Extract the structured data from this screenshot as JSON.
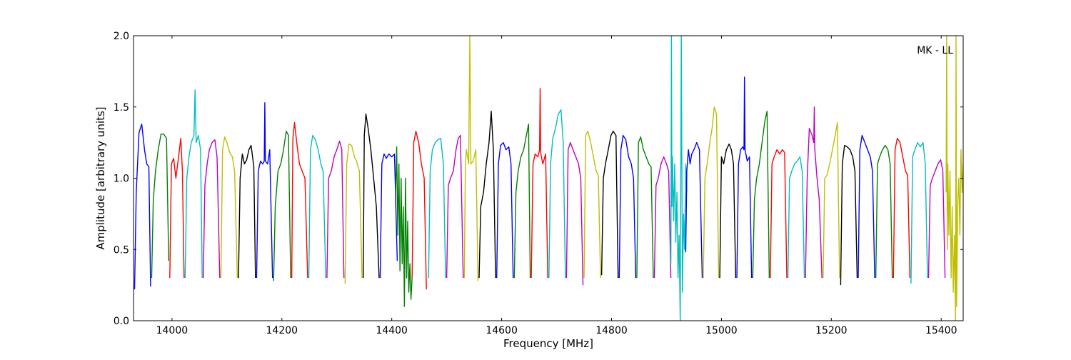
{
  "chart_data": {
    "type": "line",
    "title": "",
    "annotation": "MK - LL",
    "xlabel": "Frequency [MHz]",
    "ylabel": "Amplitude [arbitrary units]",
    "xlim": [
      13930,
      15440
    ],
    "ylim": [
      0.0,
      2.0
    ],
    "xticks": [
      14000,
      14200,
      14400,
      14600,
      14800,
      15000,
      15200,
      15400
    ],
    "yticks": [
      0.0,
      0.5,
      1.0,
      1.5,
      2.0
    ],
    "xtick_labels": [
      "14000",
      "14200",
      "14400",
      "14600",
      "14800",
      "15000",
      "15200",
      "15400"
    ],
    "ytick_labels": [
      "0.0",
      "0.5",
      "1.0",
      "1.5",
      "2.0"
    ],
    "grid": false,
    "legend": "none",
    "color_cycle": [
      "#0000ff",
      "#008000",
      "#ff0000",
      "#00bfbf",
      "#bf00bf",
      "#bfbf00",
      "#000000"
    ],
    "spike_shadow_color": "#bbbbbb",
    "series": [
      {
        "color": "#0000ff",
        "x": [
          13932,
          13935,
          13940,
          13945,
          13950,
          13954,
          13958,
          13961
        ],
        "y": [
          0.22,
          0.9,
          1.32,
          1.38,
          1.2,
          1.1,
          1.08,
          0.24
        ]
      },
      {
        "color": "#008000",
        "x": [
          13963,
          13966,
          13970,
          13975,
          13980,
          13985,
          13990,
          13994
        ],
        "y": [
          0.3,
          0.85,
          1.05,
          1.2,
          1.31,
          1.31,
          1.28,
          0.42
        ]
      },
      {
        "color": "#ff0000",
        "x": [
          13996,
          13999,
          14003,
          14007,
          14012,
          14016,
          14019,
          14022
        ],
        "y": [
          0.3,
          1.1,
          1.14,
          1.0,
          1.15,
          1.28,
          1.05,
          0.3
        ]
      },
      {
        "color": "#00bfbf",
        "x": [
          14024,
          14027,
          14031,
          14035,
          14040,
          14042,
          14044,
          14048,
          14052,
          14055
        ],
        "y": [
          0.3,
          1.0,
          1.15,
          1.25,
          1.3,
          1.62,
          1.25,
          1.3,
          1.2,
          0.3
        ]
      },
      {
        "color": "#bf00bf",
        "x": [
          14057,
          14060,
          14064,
          14068,
          14073,
          14078,
          14082,
          14087
        ],
        "y": [
          0.3,
          0.95,
          1.1,
          1.2,
          1.25,
          1.27,
          1.15,
          0.3
        ]
      },
      {
        "color": "#bfbf00",
        "x": [
          14089,
          14092,
          14096,
          14100,
          14105,
          14110,
          14114,
          14119
        ],
        "y": [
          0.3,
          1.2,
          1.29,
          1.25,
          1.18,
          1.15,
          1.05,
          0.3
        ]
      },
      {
        "color": "#000000",
        "x": [
          14121,
          14124,
          14128,
          14132,
          14136,
          14140,
          14144,
          14149,
          14152
        ],
        "y": [
          0.3,
          1.0,
          1.17,
          1.1,
          1.13,
          1.2,
          1.23,
          1.08,
          0.3
        ]
      },
      {
        "color": "#0000ff",
        "x": [
          14154,
          14157,
          14161,
          14165,
          14168,
          14169,
          14170,
          14174,
          14178,
          14183
        ],
        "y": [
          0.3,
          1.05,
          1.12,
          1.1,
          1.12,
          1.53,
          1.12,
          1.1,
          1.2,
          0.3
        ]
      },
      {
        "color": "#008000",
        "x": [
          14185,
          14188,
          14193,
          14198,
          14203,
          14208,
          14212,
          14216
        ],
        "y": [
          0.28,
          0.8,
          1.05,
          1.1,
          1.2,
          1.33,
          1.3,
          0.3
        ]
      },
      {
        "color": "#ff0000",
        "x": [
          14218,
          14220,
          14223,
          14227,
          14232,
          14237,
          14242,
          14247
        ],
        "y": [
          0.3,
          1.28,
          1.39,
          1.25,
          1.1,
          1.05,
          1.0,
          0.3
        ]
      },
      {
        "color": "#00bfbf",
        "x": [
          14249,
          14252,
          14256,
          14261,
          14266,
          14271,
          14275,
          14280
        ],
        "y": [
          0.3,
          1.2,
          1.3,
          1.27,
          1.2,
          1.1,
          1.05,
          0.3
        ]
      },
      {
        "color": "#bf00bf",
        "x": [
          14282,
          14285,
          14290,
          14295,
          14300,
          14305,
          14309,
          14313
        ],
        "y": [
          0.3,
          1.0,
          1.05,
          1.15,
          1.2,
          1.26,
          1.2,
          0.3
        ]
      },
      {
        "color": "#bfbf00",
        "x": [
          14315,
          14318,
          14322,
          14327,
          14332,
          14336,
          14341,
          14346
        ],
        "y": [
          0.26,
          1.1,
          1.24,
          1.23,
          1.15,
          1.12,
          1.05,
          0.3
        ]
      },
      {
        "color": "#000000",
        "x": [
          14348,
          14350,
          14353,
          14357,
          14362,
          14367,
          14372,
          14377
        ],
        "y": [
          0.3,
          1.3,
          1.45,
          1.35,
          1.2,
          1.0,
          0.8,
          0.3
        ]
      },
      {
        "color": "#0000ff",
        "x": [
          14379,
          14382,
          14386,
          14390,
          14395,
          14400,
          14405,
          14410
        ],
        "y": [
          0.3,
          1.1,
          1.17,
          1.14,
          1.17,
          1.15,
          1.17,
          0.42
        ]
      },
      {
        "color": "#008000",
        "x": [
          14407,
          14409,
          14411,
          14413,
          14415,
          14417,
          14419,
          14421,
          14423,
          14425,
          14427,
          14429,
          14431,
          14433,
          14435,
          14437
        ],
        "y": [
          0.9,
          1.22,
          0.6,
          1.1,
          0.35,
          1.0,
          0.4,
          0.8,
          0.1,
          1.0,
          0.3,
          0.7,
          0.2,
          0.4,
          0.15,
          0.3
        ]
      },
      {
        "color": "#ff0000",
        "x": [
          14437,
          14440,
          14444,
          14449,
          14454,
          14459,
          14463
        ],
        "y": [
          0.3,
          1.25,
          1.33,
          1.25,
          1.1,
          1.0,
          0.22
        ]
      },
      {
        "color": "#00bfbf",
        "x": [
          14467,
          14470,
          14474,
          14479,
          14484,
          14489,
          14494,
          14498
        ],
        "y": [
          0.3,
          1.05,
          1.2,
          1.25,
          1.27,
          1.28,
          1.1,
          0.3
        ]
      },
      {
        "color": "#bf00bf",
        "x": [
          14500,
          14503,
          14507,
          14512,
          14517,
          14521,
          14525,
          14530
        ],
        "y": [
          0.3,
          0.95,
          1.0,
          1.05,
          1.2,
          1.28,
          1.3,
          0.3
        ]
      },
      {
        "color": "#bfbf00",
        "x": [
          14532,
          14534,
          14536,
          14538,
          14540,
          14542,
          14544,
          14548,
          14553,
          14557
        ],
        "y": [
          0.3,
          1.1,
          1.2,
          1.15,
          1.1,
          2.0,
          1.1,
          1.12,
          1.2,
          0.28
        ]
      },
      {
        "color": "#000000",
        "x": [
          14559,
          14562,
          14567,
          14572,
          14577,
          14581,
          14585,
          14589
        ],
        "y": [
          0.3,
          0.8,
          0.9,
          1.1,
          1.25,
          1.47,
          1.2,
          0.3
        ]
      },
      {
        "color": "#0000ff",
        "x": [
          14591,
          14594,
          14598,
          14603,
          14608,
          14613,
          14617,
          14621
        ],
        "y": [
          0.3,
          1.1,
          1.23,
          1.25,
          1.2,
          1.22,
          1.1,
          0.3
        ]
      },
      {
        "color": "#008000",
        "x": [
          14623,
          14626,
          14630,
          14635,
          14640,
          14645,
          14649,
          14652
        ],
        "y": [
          0.3,
          0.9,
          1.05,
          1.15,
          1.2,
          1.3,
          1.38,
          0.3
        ]
      },
      {
        "color": "#ff0000",
        "x": [
          14654,
          14657,
          14661,
          14666,
          14669,
          14670,
          14671,
          14675,
          14680,
          14684
        ],
        "y": [
          0.3,
          1.1,
          1.17,
          1.15,
          1.2,
          1.63,
          1.18,
          1.1,
          1.17,
          0.3
        ]
      },
      {
        "color": "#00bfbf",
        "x": [
          14686,
          14689,
          14693,
          14698,
          14703,
          14708,
          14712,
          14716
        ],
        "y": [
          0.3,
          1.1,
          1.28,
          1.35,
          1.45,
          1.48,
          1.25,
          0.3
        ]
      },
      {
        "color": "#bf00bf",
        "x": [
          14718,
          14721,
          14725,
          14730,
          14735,
          14740,
          14744,
          14748
        ],
        "y": [
          0.3,
          1.2,
          1.25,
          1.2,
          1.15,
          1.1,
          1.0,
          0.25
        ]
      },
      {
        "color": "#bfbf00",
        "x": [
          14750,
          14753,
          14757,
          14762,
          14767,
          14772,
          14776,
          14780
        ],
        "y": [
          0.3,
          1.3,
          1.33,
          1.25,
          1.15,
          1.05,
          1.02,
          0.3
        ]
      },
      {
        "color": "#000000",
        "x": [
          14782,
          14785,
          14789,
          14794,
          14799,
          14803,
          14808,
          14812
        ],
        "y": [
          0.32,
          1.0,
          1.1,
          1.2,
          1.3,
          1.33,
          1.3,
          0.3
        ]
      },
      {
        "color": "#0000ff",
        "x": [
          14814,
          14817,
          14821,
          14826,
          14831,
          14836,
          14840,
          14844
        ],
        "y": [
          0.3,
          1.2,
          1.3,
          1.27,
          1.15,
          1.1,
          1.0,
          0.3
        ]
      },
      {
        "color": "#008000",
        "x": [
          14846,
          14849,
          14853,
          14858,
          14863,
          14868,
          14872,
          14876
        ],
        "y": [
          0.3,
          1.25,
          1.29,
          1.2,
          1.15,
          1.1,
          1.08,
          0.3
        ]
      },
      {
        "color": "#bf00bf",
        "x": [
          14878,
          14881,
          14885,
          14890,
          14895,
          14900,
          14904,
          14908
        ],
        "y": [
          0.3,
          0.95,
          1.0,
          1.1,
          1.15,
          1.1,
          1.05,
          0.3
        ]
      },
      {
        "color": "#00bfbf",
        "x": [
          14908,
          14909,
          14910,
          14911,
          14913,
          14915,
          14917,
          14919,
          14921,
          14923,
          14925,
          14927,
          14929,
          14931,
          14933,
          14935,
          14937
        ],
        "y": [
          0.4,
          2.0,
          0.8,
          1.15,
          0.7,
          1.1,
          0.55,
          0.9,
          0.3,
          0.6,
          0.0,
          2.0,
          0.2,
          0.75,
          0.5,
          1.1,
          0.9
        ]
      },
      {
        "color": "#0000ff",
        "x": [
          14935,
          14937,
          14940,
          14943,
          14946,
          14950,
          14955,
          14960,
          14965
        ],
        "y": [
          0.48,
          1.05,
          1.2,
          1.1,
          1.17,
          1.2,
          1.25,
          1.2,
          0.3
        ]
      },
      {
        "color": "#bfbf00",
        "x": [
          14967,
          14970,
          14974,
          14979,
          14983,
          14987,
          14991,
          14995
        ],
        "y": [
          0.3,
          1.0,
          1.1,
          1.25,
          1.35,
          1.5,
          1.45,
          0.3
        ]
      },
      {
        "color": "#000000",
        "x": [
          14997,
          15000,
          15004,
          15009,
          15014,
          15018,
          15022,
          15026
        ],
        "y": [
          0.3,
          1.15,
          1.1,
          1.2,
          1.24,
          1.2,
          1.1,
          0.3
        ]
      },
      {
        "color": "#0000ff",
        "x": [
          15028,
          15031,
          15035,
          15039,
          15041,
          15042,
          15043,
          15047,
          15051,
          15055
        ],
        "y": [
          0.3,
          1.1,
          1.2,
          1.22,
          1.2,
          1.71,
          1.2,
          1.12,
          1.15,
          0.3
        ]
      },
      {
        "color": "#008000",
        "x": [
          15057,
          15060,
          15064,
          15069,
          15074,
          15079,
          15083,
          15087
        ],
        "y": [
          0.3,
          0.85,
          1.0,
          1.1,
          1.25,
          1.4,
          1.47,
          0.3
        ]
      },
      {
        "color": "#ff0000",
        "x": [
          15089,
          15092,
          15096,
          15101,
          15106,
          15111,
          15115,
          15119
        ],
        "y": [
          0.3,
          1.1,
          1.15,
          1.2,
          1.17,
          1.2,
          1.18,
          0.3
        ]
      },
      {
        "color": "#00bfbf",
        "x": [
          15121,
          15124,
          15128,
          15133,
          15138,
          15143,
          15147,
          15151
        ],
        "y": [
          0.3,
          1.0,
          1.05,
          1.1,
          1.12,
          1.15,
          1.05,
          0.3
        ]
      },
      {
        "color": "#bf00bf",
        "x": [
          15153,
          15156,
          15160,
          15165,
          15168,
          15169,
          15170,
          15174,
          15178,
          15183
        ],
        "y": [
          0.3,
          1.0,
          1.35,
          1.3,
          1.25,
          1.5,
          1.2,
          1.0,
          0.85,
          0.3
        ]
      },
      {
        "color": "#bfbf00",
        "x": [
          15185,
          15188,
          15192,
          15197,
          15202,
          15207,
          15211,
          15215
        ],
        "y": [
          0.3,
          1.0,
          1.02,
          1.1,
          1.2,
          1.3,
          1.39,
          0.3
        ]
      },
      {
        "color": "#000000",
        "x": [
          15217,
          15220,
          15224,
          15229,
          15234,
          15239,
          15243,
          15247
        ],
        "y": [
          0.25,
          1.1,
          1.23,
          1.22,
          1.2,
          1.15,
          1.05,
          0.3
        ]
      },
      {
        "color": "#0000ff",
        "x": [
          15249,
          15252,
          15256,
          15261,
          15266,
          15271,
          15275,
          15279
        ],
        "y": [
          0.3,
          1.2,
          1.3,
          1.25,
          1.2,
          1.15,
          1.05,
          0.3
        ]
      },
      {
        "color": "#008000",
        "x": [
          15281,
          15284,
          15288,
          15293,
          15298,
          15303,
          15307,
          15311
        ],
        "y": [
          0.3,
          1.1,
          1.15,
          1.2,
          1.23,
          1.2,
          1.1,
          0.3
        ]
      },
      {
        "color": "#ff0000",
        "x": [
          15313,
          15316,
          15320,
          15325,
          15330,
          15335,
          15339,
          15343
        ],
        "y": [
          0.3,
          1.2,
          1.28,
          1.25,
          1.15,
          1.05,
          1.02,
          0.3
        ]
      },
      {
        "color": "#00bfbf",
        "x": [
          15345,
          15348,
          15352,
          15357,
          15362,
          15367,
          15371,
          15375
        ],
        "y": [
          0.26,
          1.15,
          1.2,
          1.25,
          1.22,
          1.25,
          1.1,
          0.3
        ]
      },
      {
        "color": "#bf00bf",
        "x": [
          15377,
          15380,
          15384,
          15389,
          15394,
          15399,
          15403,
          15407
        ],
        "y": [
          0.3,
          0.95,
          1.0,
          1.05,
          1.1,
          1.13,
          1.05,
          0.3
        ]
      },
      {
        "color": "#bfbf00",
        "x": [
          15409,
          15410,
          15411,
          15412,
          15414,
          15416,
          15418,
          15420,
          15422,
          15424,
          15426,
          15427,
          15428,
          15430,
          15432,
          15434,
          15436,
          15438,
          15440
        ],
        "y": [
          0.9,
          2.0,
          0.5,
          1.1,
          0.6,
          1.05,
          0.3,
          0.8,
          0.2,
          0.6,
          0.0,
          2.0,
          0.1,
          0.8,
          1.0,
          0.6,
          1.2,
          0.9,
          1.1
        ]
      }
    ]
  }
}
